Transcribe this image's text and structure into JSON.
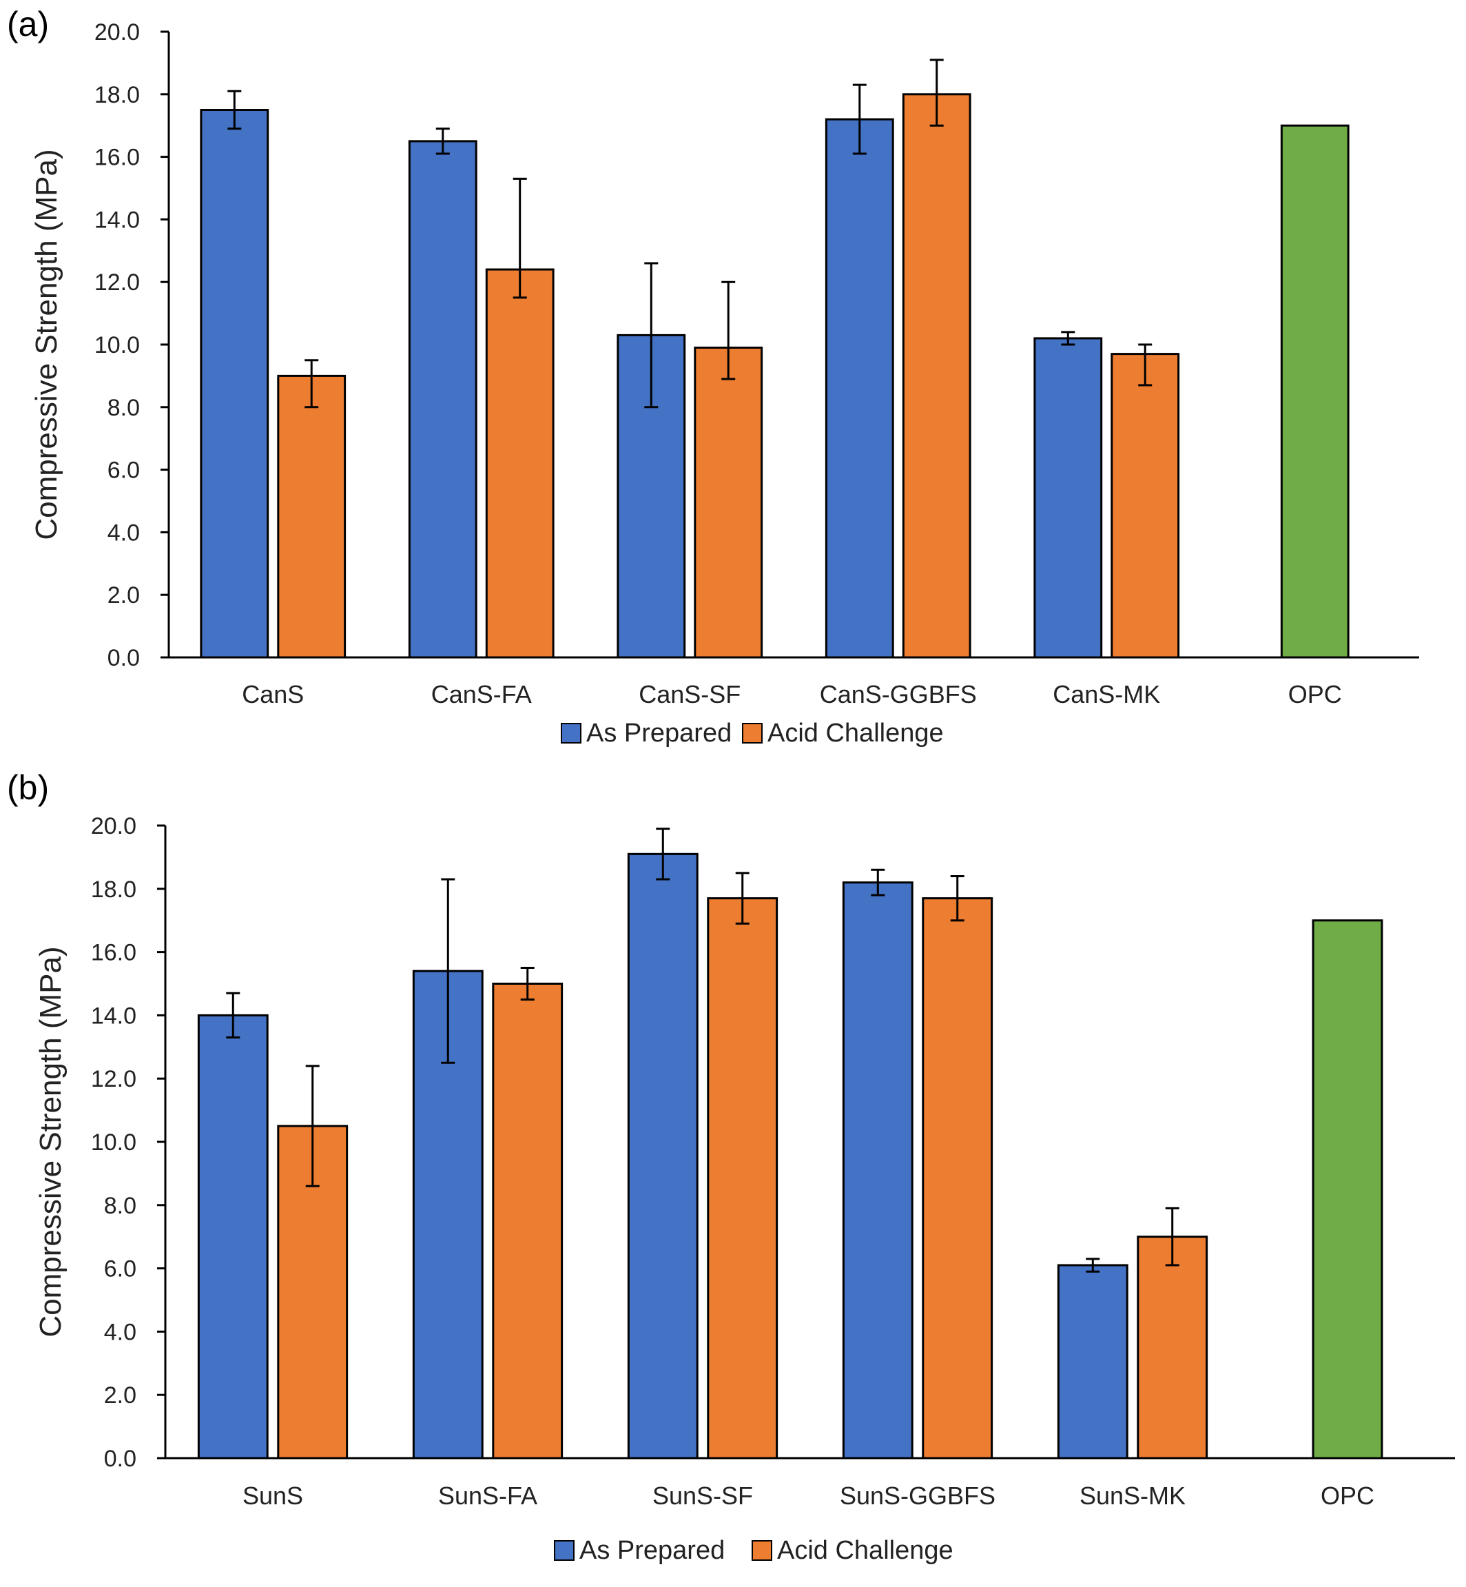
{
  "colors": {
    "as_prepared": "#4472C4",
    "acid_challenge": "#ED7D31",
    "opc": "#70AD47",
    "bar_stroke": "#000000",
    "axis": "#000000",
    "error_bar": "#000000"
  },
  "chart_data": [
    {
      "panel": "(a)",
      "type": "bar",
      "categories": [
        "CanS",
        "CanS-FA",
        "CanS-SF",
        "CanS-GGBFS",
        "CanS-MK",
        "OPC"
      ],
      "series": [
        {
          "name": "As Prepared",
          "color": "#4472C4",
          "values": [
            17.5,
            16.5,
            10.3,
            17.2,
            10.2,
            null
          ],
          "error_low": [
            16.9,
            16.1,
            8.0,
            16.1,
            10.0,
            null
          ],
          "error_high": [
            18.1,
            16.9,
            12.6,
            18.3,
            10.4,
            null
          ]
        },
        {
          "name": "Acid Challenge",
          "color": "#ED7D31",
          "values": [
            9.0,
            12.4,
            9.9,
            18.0,
            9.7,
            null
          ],
          "error_low": [
            8.0,
            11.5,
            8.9,
            17.0,
            8.7,
            null
          ],
          "error_high": [
            9.5,
            15.3,
            12.0,
            19.1,
            10.0,
            null
          ]
        }
      ],
      "reference": {
        "category": "OPC",
        "value": 17.0,
        "color": "#70AD47"
      },
      "ylabel": "Compressive Strength (MPa)",
      "ylim": [
        0,
        20
      ],
      "yticks": [
        "0.0",
        "2.0",
        "4.0",
        "6.0",
        "8.0",
        "10.0",
        "12.0",
        "14.0",
        "16.0",
        "18.0",
        "20.0"
      ],
      "legend": [
        "As Prepared",
        "Acid Challenge"
      ],
      "legend_position": "bottom",
      "grid": false
    },
    {
      "panel": "(b)",
      "type": "bar",
      "categories": [
        "SunS",
        "SunS-FA",
        "SunS-SF",
        "SunS-GGBFS",
        "SunS-MK",
        "OPC"
      ],
      "series": [
        {
          "name": "As Prepared",
          "color": "#4472C4",
          "values": [
            14.0,
            15.4,
            19.1,
            18.2,
            6.1,
            null
          ],
          "error_low": [
            13.3,
            12.5,
            18.3,
            17.8,
            5.9,
            null
          ],
          "error_high": [
            14.7,
            18.3,
            19.9,
            18.6,
            6.3,
            null
          ]
        },
        {
          "name": "Acid Challenge",
          "color": "#ED7D31",
          "values": [
            10.5,
            15.0,
            17.7,
            17.7,
            7.0,
            null
          ],
          "error_low": [
            8.6,
            14.5,
            16.9,
            17.0,
            6.1,
            null
          ],
          "error_high": [
            12.4,
            15.5,
            18.5,
            18.4,
            7.9,
            null
          ]
        }
      ],
      "reference": {
        "category": "OPC",
        "value": 17.0,
        "color": "#70AD47"
      },
      "ylabel": "Compressive Strength (MPa)",
      "ylim": [
        0,
        20
      ],
      "yticks": [
        "0.0",
        "2.0",
        "4.0",
        "6.0",
        "8.0",
        "10.0",
        "12.0",
        "14.0",
        "16.0",
        "18.0",
        "20.0"
      ],
      "legend": [
        "As Prepared",
        "Acid Challenge"
      ],
      "legend_position": "bottom",
      "grid": false
    }
  ]
}
